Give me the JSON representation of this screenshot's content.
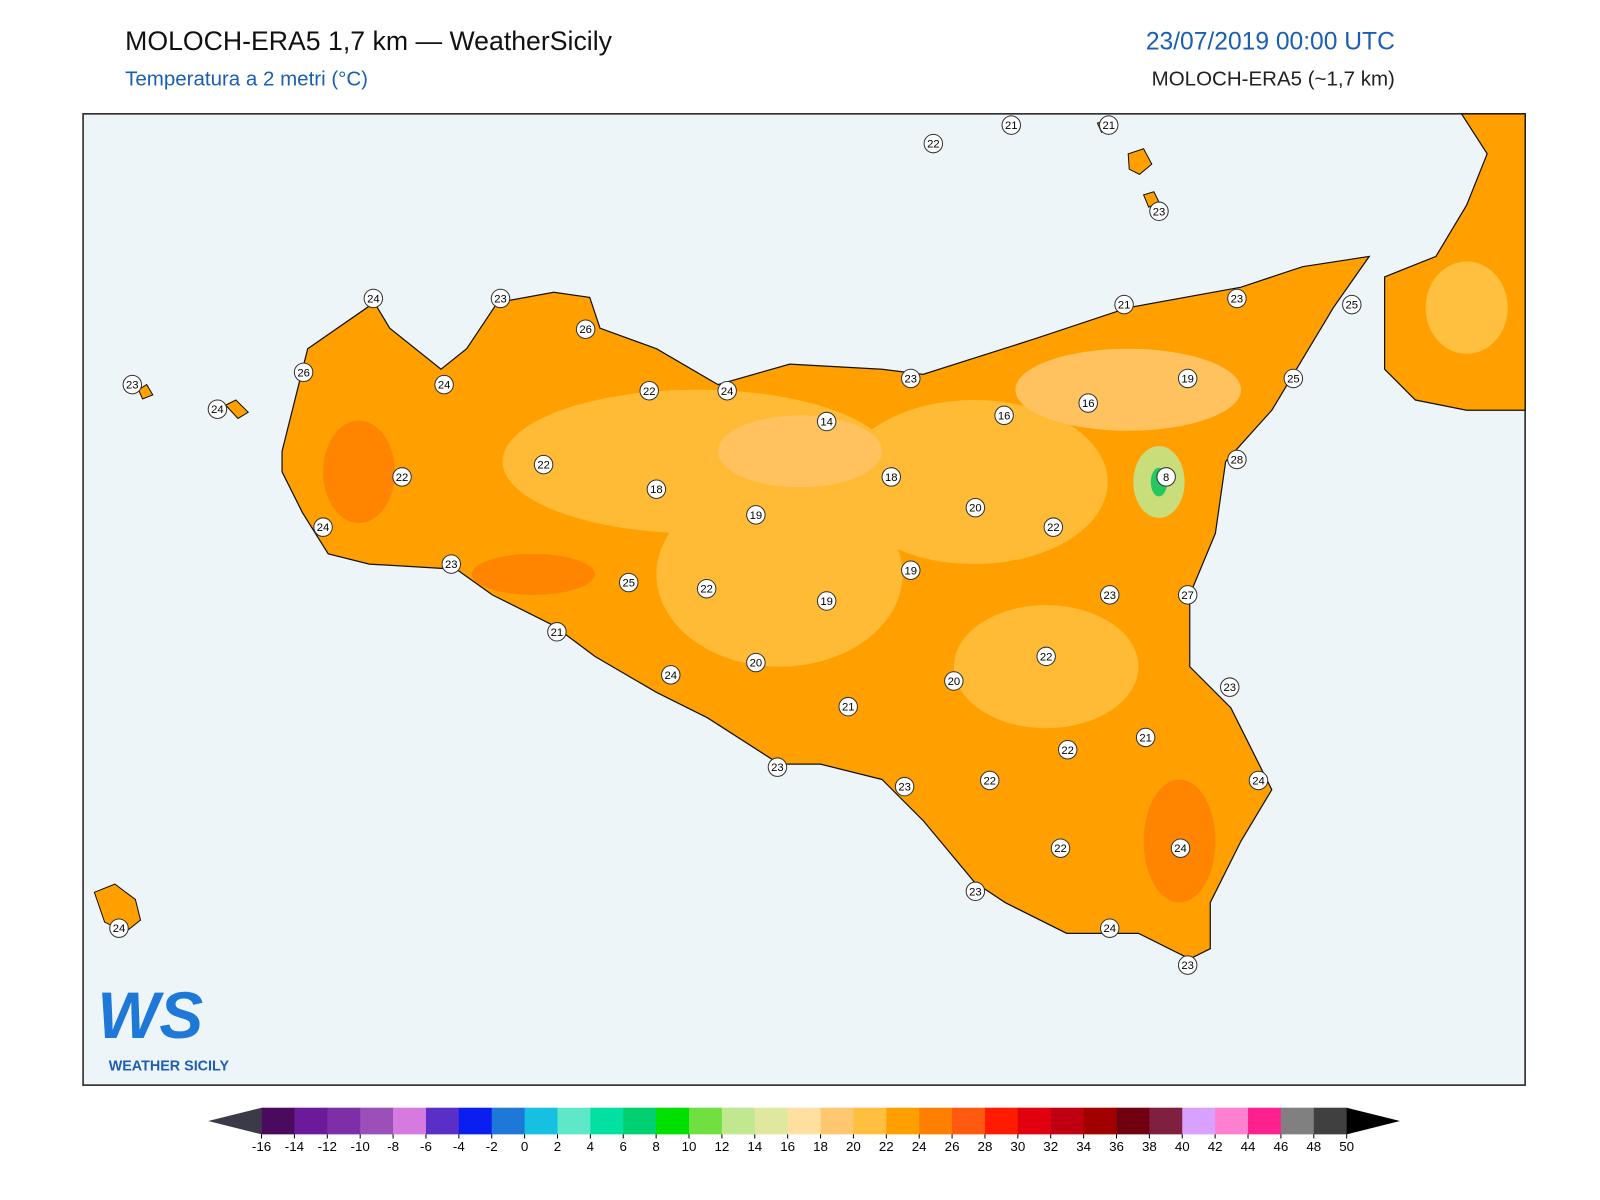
{
  "header": {
    "title": "MOLOCH-ERA5 1,7 km — WeatherSicily",
    "subtitle": "Temperatura a 2 metri (°C)",
    "datetime": "23/07/2019 00:00 UTC",
    "model": "MOLOCH-ERA5 (~1,7 km)"
  },
  "stations": [
    22,
    21,
    21,
    23,
    24,
    23,
    26,
    21,
    23,
    25,
    26,
    24,
    22,
    24,
    23,
    19,
    25,
    23,
    24,
    16,
    16,
    14,
    28,
    22,
    22,
    18,
    8,
    18,
    19,
    20,
    24,
    22,
    23,
    19,
    25,
    22,
    23,
    27,
    19,
    21,
    22,
    20,
    24,
    20,
    23,
    21,
    21,
    22,
    23,
    22,
    24,
    23,
    22,
    24,
    23,
    24,
    24,
    23
  ],
  "logo": {
    "mark": "WS",
    "name": "WEATHER SICILY"
  },
  "colorbar": {
    "ticks": [
      -16,
      -14,
      -12,
      -10,
      -8,
      -6,
      -4,
      -2,
      0,
      2,
      4,
      6,
      8,
      10,
      12,
      14,
      16,
      18,
      20,
      22,
      24,
      26,
      28,
      30,
      32,
      34,
      36,
      38,
      40,
      42,
      44,
      46,
      48,
      50
    ],
    "colors": [
      "#4a0a5e",
      "#6a1a9a",
      "#7d2fa8",
      "#9b4fb8",
      "#d77ae0",
      "#5a2fc8",
      "#0a1ef0",
      "#1e78d8",
      "#15c0e0",
      "#5ee8c8",
      "#00e0a0",
      "#00d070",
      "#00e000",
      "#70e040",
      "#c0e890",
      "#e0e8a0",
      "#ffe0a0",
      "#ffc870",
      "#ffc040",
      "#ffa000",
      "#ff8000",
      "#ff5a10",
      "#ff1a00",
      "#e00010",
      "#c00010",
      "#a00000",
      "#700010",
      "#802040",
      "#d8a0ff",
      "#ff80d0",
      "#ff2090",
      "#808080",
      "#404040"
    ],
    "extend_colors": [
      "#3a3a48",
      "#000000"
    ]
  }
}
